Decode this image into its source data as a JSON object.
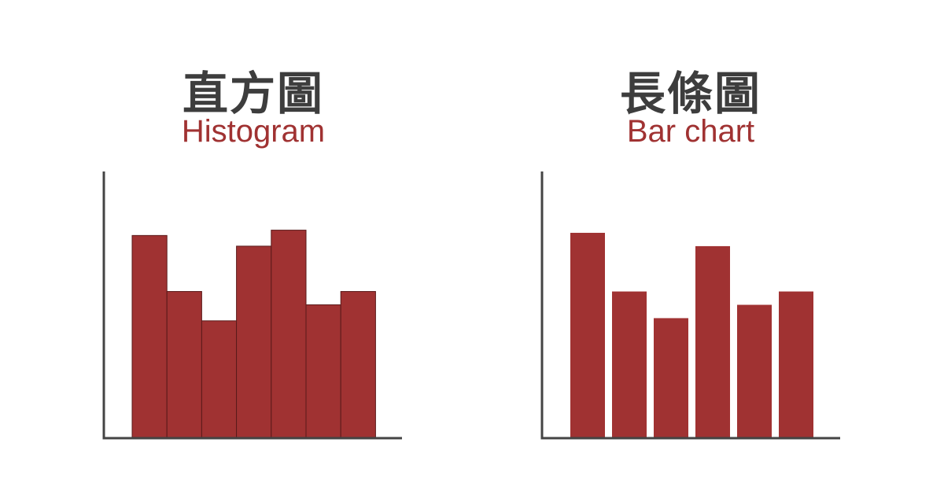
{
  "colors": {
    "bar": "#a03232",
    "bar_edge": "#5a1a1a",
    "axis": "#444444",
    "title": "#3d3d3d",
    "subtitle": "#a03232"
  },
  "chart_data": [
    {
      "type": "bar",
      "title": "直方圖",
      "subtitle": "Histogram",
      "values": [
        76,
        55,
        44,
        72,
        78,
        50,
        55
      ],
      "ylim": [
        0,
        100
      ],
      "contiguous": true,
      "grid": false
    },
    {
      "type": "bar",
      "title": "長條圖",
      "subtitle": "Bar chart",
      "values": [
        77,
        55,
        45,
        72,
        50,
        55
      ],
      "ylim": [
        0,
        100
      ],
      "contiguous": false,
      "grid": false
    }
  ]
}
